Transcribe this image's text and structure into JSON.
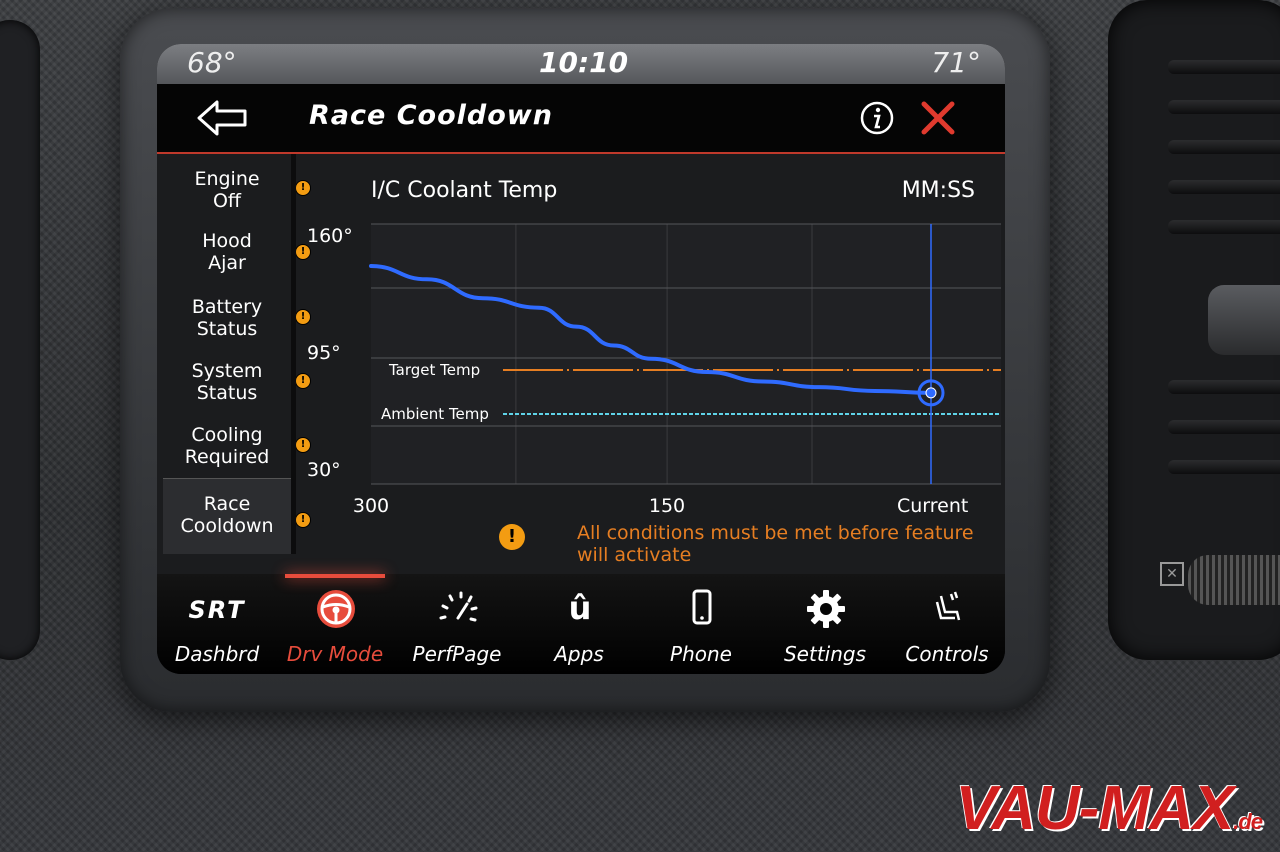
{
  "status": {
    "outside_temp_left": "68°",
    "clock": "10:10",
    "outside_temp_right": "71°"
  },
  "header": {
    "title": "Race Cooldown",
    "back_icon": "back-arrow-icon",
    "info_icon": "info-icon",
    "close_icon": "close-icon"
  },
  "sidebar": {
    "items": [
      {
        "line1": "Engine",
        "line2": "Off",
        "status": "warning"
      },
      {
        "line1": "Hood",
        "line2": "Ajar",
        "status": "warning"
      },
      {
        "line1": "Battery",
        "line2": "Status",
        "status": "warning"
      },
      {
        "line1": "System",
        "line2": "Status",
        "status": "warning"
      },
      {
        "line1": "Cooling",
        "line2": "Required",
        "status": "warning"
      },
      {
        "line1": "Race",
        "line2": "Cooldown",
        "status": "warning",
        "selected": true
      }
    ]
  },
  "chart_data": {
    "type": "line",
    "title": "I/C Coolant Temp",
    "time_label": "MM:SS",
    "x_ticks": [
      "300",
      "150",
      "Current"
    ],
    "y_ticks": [
      "160°",
      "95°",
      "30°"
    ],
    "xlim": [
      300,
      0
    ],
    "ylim": [
      30,
      160
    ],
    "series": [
      {
        "name": "",
        "color": "#2f6bff",
        "x": [
          300,
          270,
          240,
          210,
          190,
          170,
          150,
          120,
          90,
          60,
          30,
          0
        ],
        "y": [
          142,
          135,
          125,
          120,
          110,
          100,
          93,
          86,
          81,
          78,
          76,
          75
        ]
      }
    ],
    "reference_lines": [
      {
        "label": "Target Temp",
        "y": 88,
        "color": "#e67e22"
      },
      {
        "label": "Ambient Temp",
        "y": 72,
        "color": "#5fd3e8"
      }
    ],
    "current_marker": {
      "x": 0,
      "y": 75
    }
  },
  "warning_text": "All conditions must be met before feature will activate",
  "warning_icon": "!",
  "nav": {
    "items": [
      {
        "label": "Dashbrd",
        "icon": "srt-logo-icon",
        "logo_text": "SRT"
      },
      {
        "label": "Drv Mode",
        "icon": "steering-wheel-icon",
        "active": true
      },
      {
        "label": "PerfPage",
        "icon": "gauge-icon"
      },
      {
        "label": "Apps",
        "icon": "uconnect-apps-icon",
        "glyph": "û"
      },
      {
        "label": "Phone",
        "icon": "phone-icon"
      },
      {
        "label": "Settings",
        "icon": "gear-icon"
      },
      {
        "label": "Controls",
        "icon": "seat-controls-icon"
      }
    ]
  },
  "watermark": {
    "main": "VAU-MAX",
    "suffix": ".de"
  }
}
